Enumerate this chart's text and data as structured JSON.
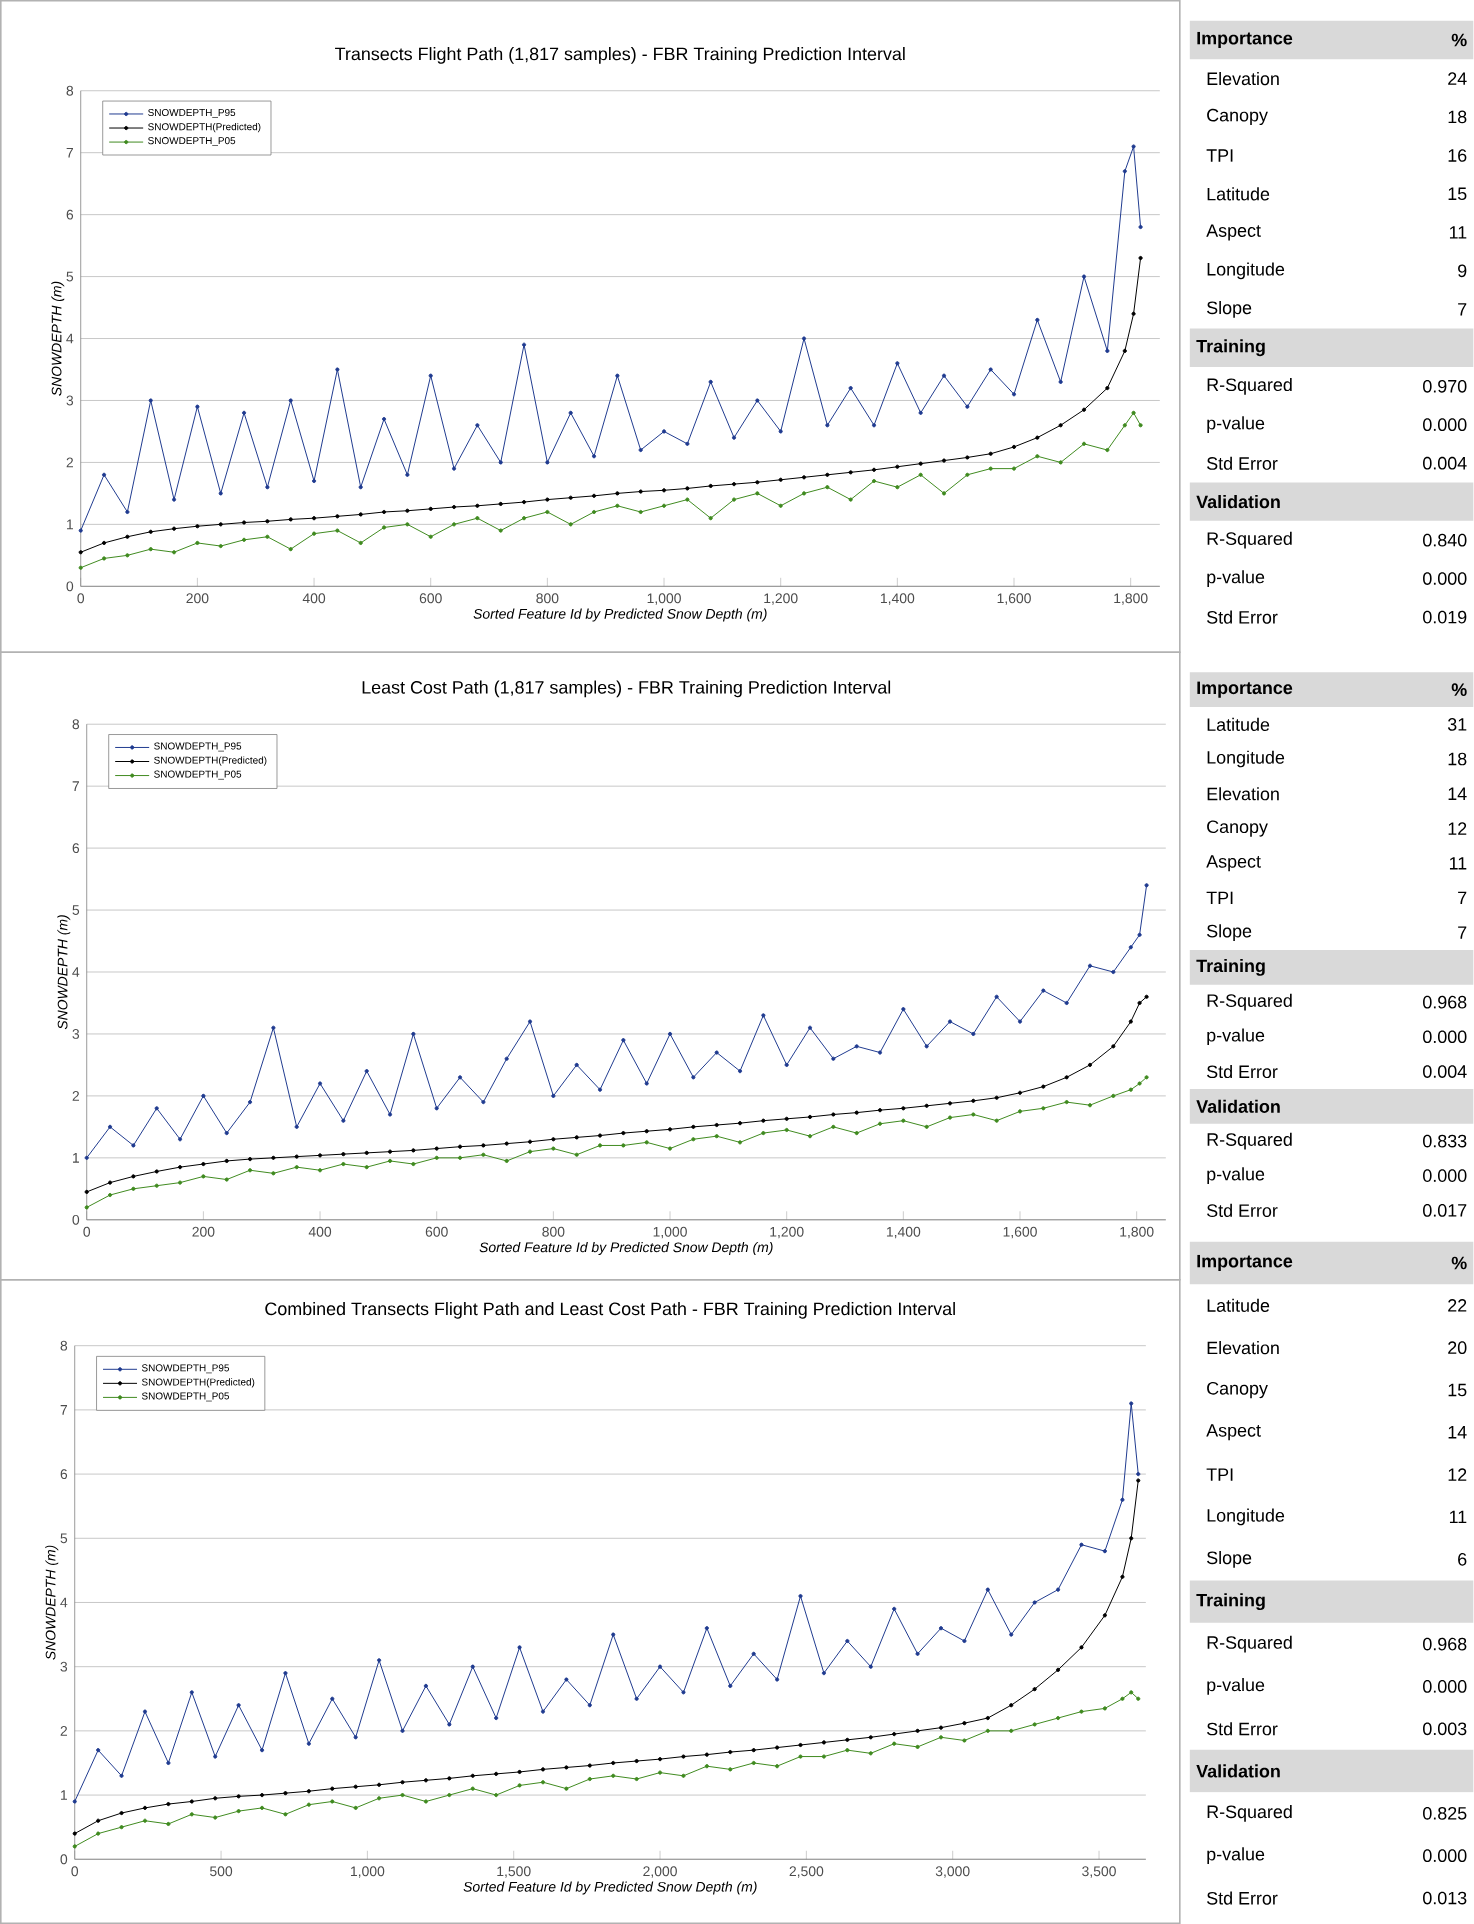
{
  "chart_data": [
    {
      "type": "line",
      "title": "Transects Flight Path (1,817 samples) - FBR Training Prediction Interval",
      "xlabel": "Sorted Feature Id by Predicted Snow Depth (m)",
      "ylabel": "SNOWDEPTH (m)",
      "xlim": [
        0,
        1850
      ],
      "ylim": [
        0,
        8
      ],
      "xticks": [
        0,
        200,
        400,
        600,
        800,
        {
          "value": 1000,
          "label": "1,000"
        },
        {
          "value": 1200,
          "label": "1,200"
        },
        {
          "value": 1400,
          "label": "1,400"
        },
        {
          "value": 1600,
          "label": "1,600"
        },
        {
          "value": 1800,
          "label": "1,800"
        }
      ],
      "yticks": [
        0,
        1,
        2,
        3,
        4,
        5,
        6,
        7,
        8
      ],
      "grid": "y",
      "legend": "top left",
      "marker": "circle",
      "line_style": "solid",
      "x": [
        0,
        40,
        80,
        120,
        160,
        200,
        240,
        280,
        320,
        360,
        400,
        440,
        480,
        520,
        560,
        600,
        640,
        680,
        720,
        760,
        800,
        840,
        880,
        920,
        960,
        1000,
        1040,
        1080,
        1120,
        1160,
        1200,
        1240,
        1280,
        1320,
        1360,
        1400,
        1440,
        1480,
        1520,
        1560,
        1600,
        1640,
        1680,
        1720,
        1760,
        1790,
        1805,
        1817
      ],
      "series": [
        {
          "name": "SNOWDEPTH_P95",
          "color": "#1f3a8f",
          "values": [
            0.9,
            1.8,
            1.2,
            3.0,
            1.4,
            2.9,
            1.5,
            2.8,
            1.6,
            3.0,
            1.7,
            3.5,
            1.6,
            2.7,
            1.8,
            3.4,
            1.9,
            2.6,
            2.0,
            3.9,
            2.0,
            2.8,
            2.1,
            3.4,
            2.2,
            2.5,
            2.3,
            3.3,
            2.4,
            3.0,
            2.5,
            4.0,
            2.6,
            3.2,
            2.6,
            3.6,
            2.8,
            3.4,
            2.9,
            3.5,
            3.1,
            4.3,
            3.3,
            5.0,
            3.8,
            6.7,
            7.1,
            5.8
          ]
        },
        {
          "name": "SNOWDEPTH(Predicted)",
          "color": "#000000",
          "values": [
            0.55,
            0.7,
            0.8,
            0.88,
            0.93,
            0.97,
            1.0,
            1.03,
            1.05,
            1.08,
            1.1,
            1.13,
            1.16,
            1.2,
            1.22,
            1.25,
            1.28,
            1.3,
            1.33,
            1.36,
            1.4,
            1.43,
            1.46,
            1.5,
            1.53,
            1.55,
            1.58,
            1.62,
            1.65,
            1.68,
            1.72,
            1.76,
            1.8,
            1.84,
            1.88,
            1.93,
            1.98,
            2.03,
            2.08,
            2.14,
            2.25,
            2.4,
            2.6,
            2.85,
            3.2,
            3.8,
            4.4,
            5.3
          ]
        },
        {
          "name": "SNOWDEPTH_P05",
          "color": "#3f8a1f",
          "values": [
            0.3,
            0.45,
            0.5,
            0.6,
            0.55,
            0.7,
            0.65,
            0.75,
            0.8,
            0.6,
            0.85,
            0.9,
            0.7,
            0.95,
            1.0,
            0.8,
            1.0,
            1.1,
            0.9,
            1.1,
            1.2,
            1.0,
            1.2,
            1.3,
            1.2,
            1.3,
            1.4,
            1.1,
            1.4,
            1.5,
            1.3,
            1.5,
            1.6,
            1.4,
            1.7,
            1.6,
            1.8,
            1.5,
            1.8,
            1.9,
            1.9,
            2.1,
            2.0,
            2.3,
            2.2,
            2.6,
            2.8,
            2.6
          ]
        }
      ]
    },
    {
      "type": "other",
      "categories": [
        "Importance",
        "Elevation",
        "Canopy",
        "TPI",
        "Latitude",
        "Aspect",
        "Longitude",
        "Slope",
        "Training",
        "R-Squared",
        "p-value",
        "Std Error",
        "Validation",
        "R-Squared",
        "p-value",
        "Std Error"
      ],
      "value_labels": [
        "%",
        "24",
        "18",
        "16",
        "15",
        "11",
        "9",
        "7",
        null,
        "0.970",
        "0.000",
        "0.004",
        null,
        "0.840",
        "0.000",
        "0.019"
      ]
    },
    {
      "type": "line",
      "title": "Least Cost Path (1,817 samples) - FBR Training Prediction Interval",
      "xlabel": "Sorted Feature Id by Predicted Snow Depth (m)",
      "ylabel": "SNOWDEPTH (m)",
      "xlim": [
        0,
        1850
      ],
      "ylim": [
        0,
        8
      ],
      "xticks": [
        0,
        200,
        400,
        600,
        800,
        {
          "value": 1000,
          "label": "1,000"
        },
        {
          "value": 1200,
          "label": "1,200"
        },
        {
          "value": 1400,
          "label": "1,400"
        },
        {
          "value": 1600,
          "label": "1,600"
        },
        {
          "value": 1800,
          "label": "1,800"
        }
      ],
      "yticks": [
        0,
        1,
        2,
        3,
        4,
        5,
        6,
        7,
        8
      ],
      "grid": "y",
      "legend": "top left",
      "marker": "circle",
      "line_style": "solid",
      "x": [
        0,
        40,
        80,
        120,
        160,
        200,
        240,
        280,
        320,
        360,
        400,
        440,
        480,
        520,
        560,
        600,
        640,
        680,
        720,
        760,
        800,
        840,
        880,
        920,
        960,
        1000,
        1040,
        1080,
        1120,
        1160,
        1200,
        1240,
        1280,
        1320,
        1360,
        1400,
        1440,
        1480,
        1520,
        1560,
        1600,
        1640,
        1680,
        1720,
        1760,
        1790,
        1805,
        1817
      ],
      "series": [
        {
          "name": "SNOWDEPTH_P95",
          "color": "#1f3a8f",
          "values": [
            1.0,
            1.5,
            1.2,
            1.8,
            1.3,
            2.0,
            1.4,
            1.9,
            3.1,
            1.5,
            2.2,
            1.6,
            2.4,
            1.7,
            3.0,
            1.8,
            2.3,
            1.9,
            2.6,
            3.2,
            2.0,
            2.5,
            2.1,
            2.9,
            2.2,
            3.0,
            2.3,
            2.7,
            2.4,
            3.3,
            2.5,
            3.1,
            2.6,
            2.8,
            2.7,
            3.4,
            2.8,
            3.2,
            3.0,
            3.6,
            3.2,
            3.7,
            3.5,
            4.1,
            4.0,
            4.4,
            4.6,
            5.4
          ]
        },
        {
          "name": "SNOWDEPTH(Predicted)",
          "color": "#000000",
          "values": [
            0.45,
            0.6,
            0.7,
            0.78,
            0.85,
            0.9,
            0.95,
            0.98,
            1.0,
            1.02,
            1.04,
            1.06,
            1.08,
            1.1,
            1.12,
            1.15,
            1.18,
            1.2,
            1.23,
            1.26,
            1.3,
            1.33,
            1.36,
            1.4,
            1.43,
            1.46,
            1.5,
            1.53,
            1.56,
            1.6,
            1.63,
            1.66,
            1.7,
            1.73,
            1.77,
            1.8,
            1.84,
            1.88,
            1.92,
            1.97,
            2.05,
            2.15,
            2.3,
            2.5,
            2.8,
            3.2,
            3.5,
            3.6
          ]
        },
        {
          "name": "SNOWDEPTH_P05",
          "color": "#3f8a1f",
          "values": [
            0.2,
            0.4,
            0.5,
            0.55,
            0.6,
            0.7,
            0.65,
            0.8,
            0.75,
            0.85,
            0.8,
            0.9,
            0.85,
            0.95,
            0.9,
            1.0,
            1.0,
            1.05,
            0.95,
            1.1,
            1.15,
            1.05,
            1.2,
            1.2,
            1.25,
            1.15,
            1.3,
            1.35,
            1.25,
            1.4,
            1.45,
            1.35,
            1.5,
            1.4,
            1.55,
            1.6,
            1.5,
            1.65,
            1.7,
            1.6,
            1.75,
            1.8,
            1.9,
            1.85,
            2.0,
            2.1,
            2.2,
            2.3
          ]
        }
      ]
    },
    {
      "type": "other",
      "categories": [
        "Importance",
        "Latitude",
        "Longitude",
        "Elevation",
        "Canopy",
        "Aspect",
        "TPI",
        "Slope",
        "Training",
        "R-Squared",
        "p-value",
        "Std Error",
        "Validation",
        "R-Squared",
        "p-value",
        "Std Error"
      ],
      "value_labels": [
        "%",
        "31",
        "18",
        "14",
        "12",
        "11",
        "7",
        "7",
        null,
        "0.968",
        "0.000",
        "0.004",
        null,
        "0.833",
        "0.000",
        "0.017"
      ]
    },
    {
      "type": "line",
      "title": "Combined Transects Flight Path and Least Cost Path - FBR Training Prediction Interval",
      "xlabel": "Sorted Feature Id by Predicted Snow Depth (m)",
      "ylabel": "SNOWDEPTH (m)",
      "xlim": [
        0,
        3660
      ],
      "ylim": [
        0,
        8
      ],
      "xticks": [
        0,
        500,
        {
          "value": 1000,
          "label": "1,000"
        },
        {
          "value": 1500,
          "label": "1,500"
        },
        {
          "value": 2000,
          "label": "2,000"
        },
        {
          "value": 2500,
          "label": "2,500"
        },
        {
          "value": 3000,
          "label": "3,000"
        },
        {
          "value": 3500,
          "label": "3,500"
        }
      ],
      "yticks": [
        0,
        1,
        2,
        3,
        4,
        5,
        6,
        7,
        8
      ],
      "grid": "y",
      "legend": "top left",
      "marker": "circle",
      "line_style": "solid",
      "x": [
        0,
        80,
        160,
        240,
        320,
        400,
        480,
        560,
        640,
        720,
        800,
        880,
        960,
        1040,
        1120,
        1200,
        1280,
        1360,
        1440,
        1520,
        1600,
        1680,
        1760,
        1840,
        1920,
        2000,
        2080,
        2160,
        2240,
        2320,
        2400,
        2480,
        2560,
        2640,
        2720,
        2800,
        2880,
        2960,
        3040,
        3120,
        3200,
        3280,
        3360,
        3440,
        3520,
        3580,
        3610,
        3634
      ],
      "series": [
        {
          "name": "SNOWDEPTH_P95",
          "color": "#1f3a8f",
          "values": [
            0.9,
            1.7,
            1.3,
            2.3,
            1.5,
            2.6,
            1.6,
            2.4,
            1.7,
            2.9,
            1.8,
            2.5,
            1.9,
            3.1,
            2.0,
            2.7,
            2.1,
            3.0,
            2.2,
            3.3,
            2.3,
            2.8,
            2.4,
            3.5,
            2.5,
            3.0,
            2.6,
            3.6,
            2.7,
            3.2,
            2.8,
            4.1,
            2.9,
            3.4,
            3.0,
            3.9,
            3.2,
            3.6,
            3.4,
            4.2,
            3.5,
            4.0,
            4.2,
            4.9,
            4.8,
            5.6,
            7.1,
            6.0
          ]
        },
        {
          "name": "SNOWDEPTH(Predicted)",
          "color": "#000000",
          "values": [
            0.4,
            0.6,
            0.72,
            0.8,
            0.86,
            0.9,
            0.95,
            0.98,
            1.0,
            1.03,
            1.06,
            1.1,
            1.13,
            1.16,
            1.2,
            1.23,
            1.26,
            1.3,
            1.33,
            1.36,
            1.4,
            1.43,
            1.46,
            1.5,
            1.53,
            1.56,
            1.6,
            1.63,
            1.67,
            1.7,
            1.74,
            1.78,
            1.82,
            1.86,
            1.9,
            1.95,
            2.0,
            2.05,
            2.12,
            2.2,
            2.4,
            2.65,
            2.95,
            3.3,
            3.8,
            4.4,
            5.0,
            5.9
          ]
        },
        {
          "name": "SNOWDEPTH_P05",
          "color": "#3f8a1f",
          "values": [
            0.2,
            0.4,
            0.5,
            0.6,
            0.55,
            0.7,
            0.65,
            0.75,
            0.8,
            0.7,
            0.85,
            0.9,
            0.8,
            0.95,
            1.0,
            0.9,
            1.0,
            1.1,
            1.0,
            1.15,
            1.2,
            1.1,
            1.25,
            1.3,
            1.25,
            1.35,
            1.3,
            1.45,
            1.4,
            1.5,
            1.45,
            1.6,
            1.6,
            1.7,
            1.65,
            1.8,
            1.75,
            1.9,
            1.85,
            2.0,
            2.0,
            2.1,
            2.2,
            2.3,
            2.35,
            2.5,
            2.6,
            2.5
          ]
        }
      ]
    },
    {
      "type": "other",
      "categories": [
        "Importance",
        "Latitude",
        "Elevation",
        "Canopy",
        "Aspect",
        "TPI",
        "Longitude",
        "Slope",
        "Training",
        "R-Squared",
        "p-value",
        "Std Error",
        "Validation",
        "R-Squared",
        "p-value",
        "Std Error"
      ],
      "value_labels": [
        "%",
        "22",
        "20",
        "15",
        "14",
        "12",
        "11",
        "6",
        null,
        "0.968",
        "0.000",
        "0.003",
        null,
        "0.825",
        "0.000",
        "0.013"
      ]
    }
  ]
}
